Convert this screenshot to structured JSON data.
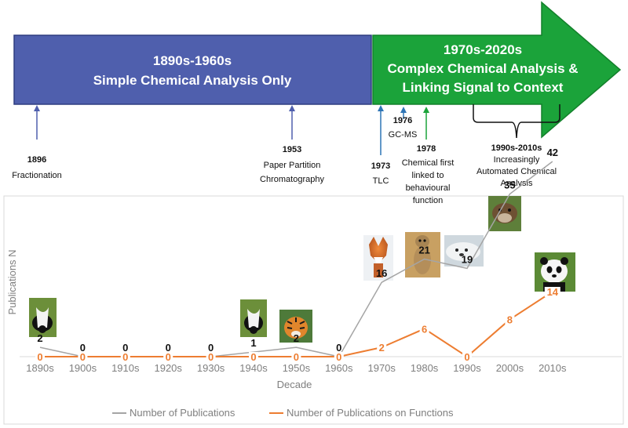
{
  "timeline": {
    "era1": {
      "period": "1890s-1960s",
      "description": "Simple Chemical Analysis Only",
      "color": "#4f5fad"
    },
    "era2": {
      "period": "1970s-2020s",
      "line1": "Complex Chemical Analysis &",
      "line2": "Linking Signal to Context",
      "color": "#1ba33a"
    },
    "events": [
      {
        "year": "1896",
        "lines": [
          "Fractionation"
        ]
      },
      {
        "year": "1953",
        "lines": [
          "Paper Partition",
          "Chromatography"
        ]
      },
      {
        "year": "1973",
        "lines": [
          "TLC"
        ]
      },
      {
        "year": "1976",
        "lines": [
          "GC-MS"
        ]
      },
      {
        "year": "1978",
        "lines": [
          "Chemical first",
          "linked to",
          "behavioural",
          "function"
        ]
      },
      {
        "year": "1990s-2010s",
        "lines": [
          "Increasingly",
          "Automated Chemical",
          "Analysis"
        ]
      }
    ]
  },
  "animals": [
    {
      "name": "skunk",
      "decade": "1890s"
    },
    {
      "name": "skunk",
      "decade": "1940s"
    },
    {
      "name": "tiger",
      "decade": "1950s"
    },
    {
      "name": "fox",
      "decade": "1970s"
    },
    {
      "name": "meerkat",
      "decade": "1980s"
    },
    {
      "name": "seal",
      "decade": "1990s"
    },
    {
      "name": "otter",
      "decade": "2000s"
    },
    {
      "name": "panda",
      "decade": "2010s"
    }
  ],
  "chart_data": {
    "type": "line",
    "x": [
      "1890s",
      "1900s",
      "1910s",
      "1920s",
      "1930s",
      "1940s",
      "1950s",
      "1960s",
      "1970s",
      "1980s",
      "1990s",
      "2000s",
      "2010s"
    ],
    "series": [
      {
        "name": "Number of Publications",
        "color": "#a5a5a5",
        "values": [
          2,
          0,
          0,
          0,
          0,
          1,
          2,
          0,
          16,
          21,
          19,
          35,
          42
        ]
      },
      {
        "name": "Number of Publications on Functions",
        "color": "#ed7d31",
        "values": [
          0,
          0,
          0,
          0,
          0,
          0,
          0,
          0,
          2,
          6,
          0,
          8,
          14
        ]
      }
    ],
    "xlabel": "Decade",
    "ylabel": "Publications N",
    "ylim": [
      0,
      45
    ],
    "grid": false,
    "legend": "bottom"
  }
}
